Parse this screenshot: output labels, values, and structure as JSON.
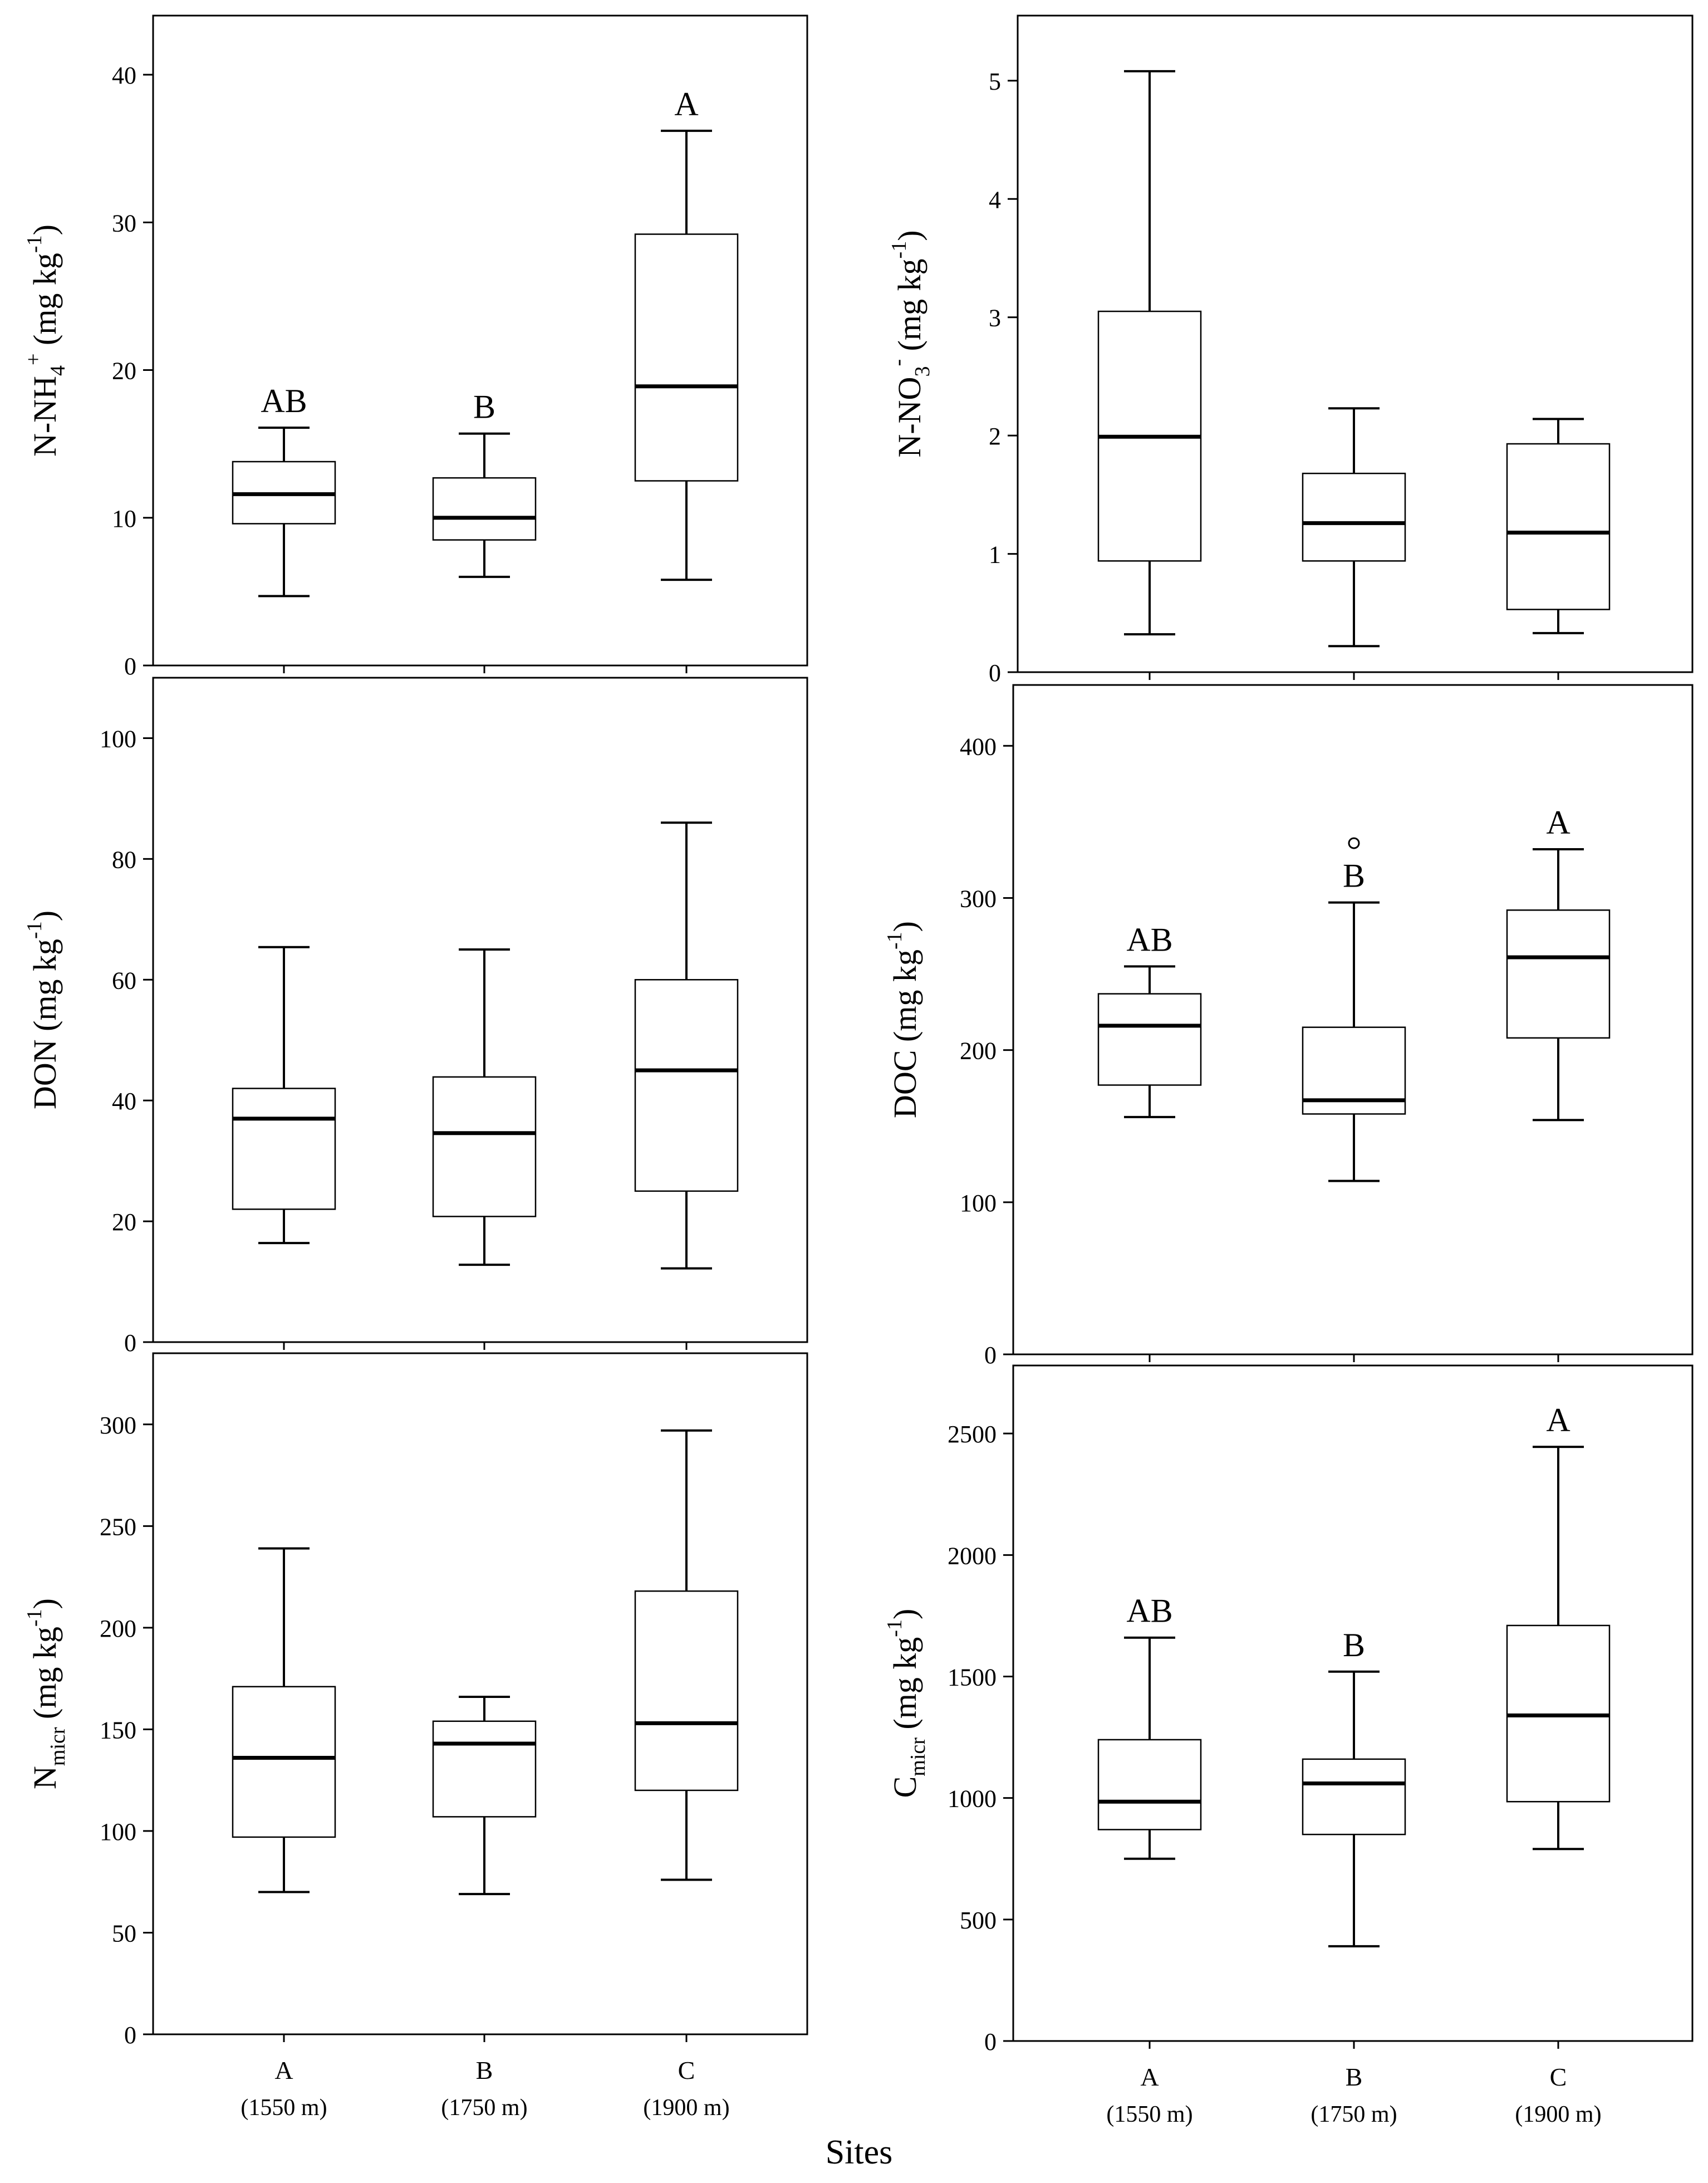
{
  "figure": {
    "shared_xlabel": "Sites",
    "site_letters": [
      "A",
      "B",
      "C"
    ],
    "site_elevations": [
      "(1550 m)",
      "(1750 m)",
      "(1900 m)"
    ]
  },
  "chart_data": [
    {
      "id": "nh4",
      "type": "boxplot",
      "ylabel": {
        "main": "N-NH",
        "sub": "4",
        "sup": "+",
        "units": " (mg kg",
        "unit_sup": "-1",
        "close": ")"
      },
      "ylim": [
        0,
        44
      ],
      "yticks": [
        0,
        10,
        20,
        30,
        40
      ],
      "categories": [
        "A",
        "B",
        "C"
      ],
      "boxes": [
        {
          "whisker_low": 4.7,
          "q1": 9.6,
          "median": 11.6,
          "q3": 13.8,
          "whisker_high": 16.1,
          "outliers": [],
          "letter": "AB"
        },
        {
          "whisker_low": 6.0,
          "q1": 8.5,
          "median": 10.0,
          "q3": 12.7,
          "whisker_high": 15.7,
          "outliers": [],
          "letter": "B"
        },
        {
          "whisker_low": 5.8,
          "q1": 12.5,
          "median": 18.9,
          "q3": 29.2,
          "whisker_high": 36.2,
          "outliers": [],
          "letter": "A"
        }
      ]
    },
    {
      "id": "no3",
      "type": "boxplot",
      "ylabel": {
        "main": "N-NO",
        "sub": "3",
        "sup": "-",
        "units": " (mg kg",
        "unit_sup": "-1",
        "close": ")"
      },
      "ylim": [
        0,
        5.55
      ],
      "yticks": [
        0,
        1,
        2,
        3,
        4,
        5
      ],
      "categories": [
        "A",
        "B",
        "C"
      ],
      "boxes": [
        {
          "whisker_low": 0.32,
          "q1": 0.94,
          "median": 1.99,
          "q3": 3.05,
          "whisker_high": 5.08,
          "outliers": []
        },
        {
          "whisker_low": 0.22,
          "q1": 0.94,
          "median": 1.26,
          "q3": 1.68,
          "whisker_high": 2.23,
          "outliers": []
        },
        {
          "whisker_low": 0.33,
          "q1": 0.53,
          "median": 1.18,
          "q3": 1.93,
          "whisker_high": 2.14,
          "outliers": []
        }
      ]
    },
    {
      "id": "don",
      "type": "boxplot",
      "ylabel": {
        "main": "DON",
        "sub": "",
        "sup": "",
        "units": " (mg kg",
        "unit_sup": "-1",
        "close": ")"
      },
      "ylim": [
        0,
        110
      ],
      "yticks": [
        0,
        20,
        40,
        60,
        80,
        100
      ],
      "categories": [
        "A",
        "B",
        "C"
      ],
      "boxes": [
        {
          "whisker_low": 16.4,
          "q1": 22.0,
          "median": 37.0,
          "q3": 42.0,
          "whisker_high": 65.4,
          "outliers": []
        },
        {
          "whisker_low": 12.8,
          "q1": 20.8,
          "median": 34.6,
          "q3": 43.9,
          "whisker_high": 65.0,
          "outliers": []
        },
        {
          "whisker_low": 12.2,
          "q1": 25.0,
          "median": 45.0,
          "q3": 60.0,
          "whisker_high": 86.0,
          "outliers": []
        }
      ]
    },
    {
      "id": "doc",
      "type": "boxplot",
      "ylabel": {
        "main": "DOC",
        "sub": "",
        "sup": "",
        "units": " (mg kg",
        "unit_sup": "-1",
        "close": ")"
      },
      "ylim": [
        0,
        440
      ],
      "yticks": [
        0,
        100,
        200,
        300,
        400
      ],
      "categories": [
        "A",
        "B",
        "C"
      ],
      "boxes": [
        {
          "whisker_low": 156,
          "q1": 177,
          "median": 216,
          "q3": 237,
          "whisker_high": 255,
          "outliers": [],
          "letter": "AB"
        },
        {
          "whisker_low": 114,
          "q1": 158,
          "median": 167,
          "q3": 215,
          "whisker_high": 297,
          "outliers": [
            336
          ],
          "letter": "B"
        },
        {
          "whisker_low": 154,
          "q1": 208,
          "median": 261,
          "q3": 292,
          "whisker_high": 332,
          "outliers": [],
          "letter": "A"
        }
      ]
    },
    {
      "id": "nmicr",
      "type": "boxplot",
      "ylabel": {
        "main": "N",
        "sub": "micr",
        "sup": "",
        "units": " (mg kg",
        "unit_sup": "-1",
        "close": ")"
      },
      "ylim": [
        0,
        335
      ],
      "yticks": [
        0,
        50,
        100,
        150,
        200,
        250,
        300
      ],
      "categories": [
        "A",
        "B",
        "C"
      ],
      "boxes": [
        {
          "whisker_low": 70,
          "q1": 97,
          "median": 136,
          "q3": 171,
          "whisker_high": 239,
          "outliers": []
        },
        {
          "whisker_low": 69,
          "q1": 107,
          "median": 143,
          "q3": 154,
          "whisker_high": 166,
          "outliers": []
        },
        {
          "whisker_low": 76,
          "q1": 120,
          "median": 153,
          "q3": 218,
          "whisker_high": 297,
          "outliers": []
        }
      ]
    },
    {
      "id": "cmicr",
      "type": "boxplot",
      "ylabel": {
        "main": "C",
        "sub": "micr",
        "sup": "",
        "units": " (mg kg",
        "unit_sup": "-1",
        "close": ")"
      },
      "ylim": [
        0,
        2780
      ],
      "yticks": [
        0,
        500,
        1000,
        1500,
        2000,
        2500
      ],
      "categories": [
        "A",
        "B",
        "C"
      ],
      "boxes": [
        {
          "whisker_low": 750,
          "q1": 870,
          "median": 985,
          "q3": 1240,
          "whisker_high": 1660,
          "outliers": [],
          "letter": "AB"
        },
        {
          "whisker_low": 390,
          "q1": 850,
          "median": 1060,
          "q3": 1160,
          "whisker_high": 1520,
          "outliers": [],
          "letter": "B"
        },
        {
          "whisker_low": 790,
          "q1": 985,
          "median": 1340,
          "q3": 1710,
          "whisker_high": 2445,
          "outliers": [],
          "letter": "A"
        }
      ]
    }
  ]
}
